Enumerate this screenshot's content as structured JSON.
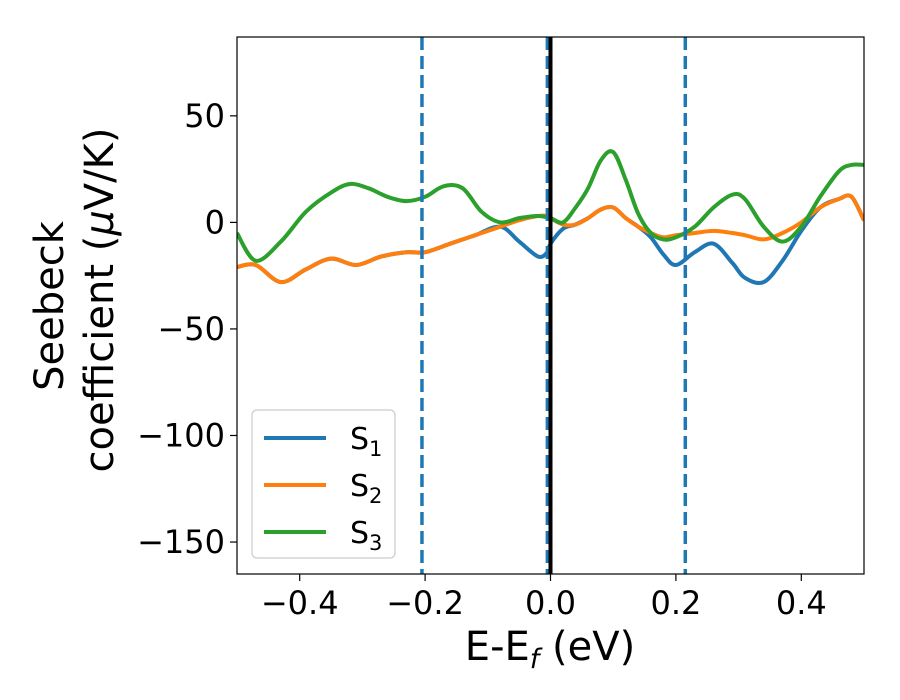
{
  "chart_data": {
    "type": "line",
    "xlabel_main": "E-E",
    "xlabel_sub": "f",
    "xlabel_unit": " (eV)",
    "ylabel_line1": "Seebeck",
    "ylabel_line2_a": "coefficient  (",
    "ylabel_line2_mu": "μ",
    "ylabel_line2_b": "V/K)",
    "xlim": [
      -0.5,
      0.5
    ],
    "ylim": [
      -165,
      87
    ],
    "xticks": [
      -0.4,
      -0.2,
      0.0,
      0.2,
      0.4
    ],
    "xtick_labels": [
      "−0.4",
      "−0.2",
      "0.0",
      "0.2",
      "0.4"
    ],
    "yticks": [
      50,
      0,
      -50,
      -100,
      -150
    ],
    "ytick_labels": [
      "50",
      "0",
      "−50",
      "−100",
      "−150"
    ],
    "vlines": [
      {
        "x": -0.205,
        "style": "dashed",
        "color": "#1f77b4"
      },
      {
        "x": -0.005,
        "style": "dashed",
        "color": "#1f77b4"
      },
      {
        "x": 0.0,
        "style": "solid",
        "color": "#000000"
      },
      {
        "x": 0.215,
        "style": "dashed",
        "color": "#1f77b4"
      }
    ],
    "legend": {
      "placement": "lower-left"
    },
    "series": [
      {
        "name": "S",
        "sub": "1",
        "color": "#1f77b4",
        "x": [
          -0.5,
          -0.47,
          -0.43,
          -0.39,
          -0.35,
          -0.31,
          -0.27,
          -0.23,
          -0.2,
          -0.16,
          -0.12,
          -0.08,
          -0.05,
          -0.02,
          -0.005,
          0.0,
          0.02,
          0.04,
          0.06,
          0.08,
          0.1,
          0.12,
          0.14,
          0.16,
          0.18,
          0.2,
          0.23,
          0.26,
          0.29,
          0.31,
          0.34,
          0.37,
          0.4,
          0.43,
          0.46,
          0.48,
          0.5
        ],
        "y": [
          -21,
          -20,
          -28,
          -22,
          -17,
          -20,
          -16,
          -14,
          -14,
          -10,
          -6,
          -2,
          -9,
          -16,
          -14,
          -10,
          -3,
          -1,
          2,
          6,
          7,
          2,
          -2,
          -7,
          -15,
          -20,
          -14,
          -10,
          -19,
          -26,
          -28,
          -18,
          -4,
          7,
          11,
          12,
          1
        ]
      },
      {
        "name": "S",
        "sub": "2",
        "color": "#ff7f0e",
        "x": [
          -0.5,
          -0.47,
          -0.43,
          -0.39,
          -0.35,
          -0.31,
          -0.27,
          -0.23,
          -0.2,
          -0.16,
          -0.12,
          -0.08,
          -0.05,
          -0.02,
          -0.005,
          0.0,
          0.02,
          0.04,
          0.06,
          0.08,
          0.1,
          0.12,
          0.14,
          0.16,
          0.18,
          0.2,
          0.23,
          0.26,
          0.29,
          0.31,
          0.34,
          0.37,
          0.4,
          0.43,
          0.46,
          0.48,
          0.5
        ],
        "y": [
          -21,
          -20,
          -28,
          -22,
          -17,
          -20,
          -16,
          -14,
          -14,
          -10,
          -6,
          -2,
          1,
          3,
          3,
          2,
          -1,
          -1,
          2,
          6,
          7,
          2,
          -2,
          -5,
          -7,
          -6,
          -5,
          -4,
          -5,
          -6,
          -8,
          -5,
          0,
          7,
          11,
          12,
          1
        ]
      },
      {
        "name": "S",
        "sub": "3",
        "color": "#2ca02c",
        "x": [
          -0.5,
          -0.47,
          -0.43,
          -0.39,
          -0.35,
          -0.32,
          -0.29,
          -0.26,
          -0.23,
          -0.2,
          -0.17,
          -0.14,
          -0.11,
          -0.08,
          -0.05,
          -0.02,
          0.0,
          0.02,
          0.04,
          0.06,
          0.08,
          0.1,
          0.12,
          0.14,
          0.16,
          0.18,
          0.2,
          0.23,
          0.26,
          0.29,
          0.31,
          0.34,
          0.37,
          0.4,
          0.43,
          0.46,
          0.48,
          0.5
        ],
        "y": [
          -5,
          -18,
          -9,
          5,
          14,
          18,
          16,
          12,
          10,
          12,
          17,
          16,
          5,
          0,
          2,
          3,
          2,
          0,
          7,
          16,
          29,
          33,
          20,
          4,
          -5,
          -8,
          -7,
          -2,
          7,
          13,
          11,
          -2,
          -9,
          -2,
          12,
          24,
          27,
          27
        ]
      }
    ]
  }
}
